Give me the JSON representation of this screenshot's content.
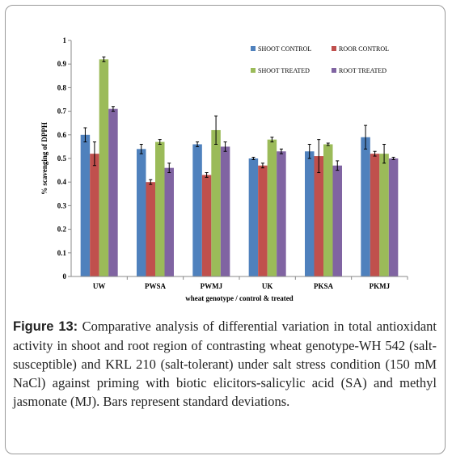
{
  "chart_data": {
    "type": "bar",
    "categories": [
      "UW",
      "PWSA",
      "PWMJ",
      "UK",
      "PKSA",
      "PKMJ"
    ],
    "series": [
      {
        "name": "SHOOT CONTROL",
        "color": "#4f81bd",
        "values": [
          0.6,
          0.54,
          0.56,
          0.5,
          0.53,
          0.59
        ],
        "errors": [
          0.03,
          0.02,
          0.01,
          0.005,
          0.03,
          0.05
        ]
      },
      {
        "name": "ROOR CONTROL",
        "color": "#c0504d",
        "values": [
          0.52,
          0.4,
          0.43,
          0.47,
          0.51,
          0.52
        ],
        "errors": [
          0.05,
          0.01,
          0.01,
          0.01,
          0.07,
          0.01
        ]
      },
      {
        "name": "SHOOT TREATED",
        "color": "#9bbb59",
        "values": [
          0.92,
          0.57,
          0.62,
          0.58,
          0.56,
          0.52
        ],
        "errors": [
          0.01,
          0.01,
          0.06,
          0.01,
          0.005,
          0.04
        ]
      },
      {
        "name": "ROOT TREATED",
        "color": "#8064a2",
        "values": [
          0.71,
          0.46,
          0.55,
          0.53,
          0.47,
          0.5
        ],
        "errors": [
          0.01,
          0.02,
          0.02,
          0.01,
          0.02,
          0.005
        ]
      }
    ],
    "ylim": [
      0,
      1
    ],
    "yticks": [
      "0",
      "0.1",
      "0.2",
      "0.3",
      "0.4",
      "0.5",
      "0.6",
      "0.7",
      "0.8",
      "0.9",
      "1"
    ],
    "ylabel": "% scavenging of DPPH",
    "xlabel": "wheat genotype / control & treated",
    "legend_position": "top-right",
    "grid": false
  },
  "caption": {
    "label": "Figure 13:",
    "text": " Comparative analysis of differential variation in total antioxidant activity in shoot and root region of contrasting wheat genotype-WH 542 (salt-susceptible) and KRL 210 (salt-tolerant) under salt stress condition (150 mM NaCl) against priming with biotic elicitors-salicylic acid (SA) and methyl jasmonate (MJ). Bars represent standard deviations."
  }
}
